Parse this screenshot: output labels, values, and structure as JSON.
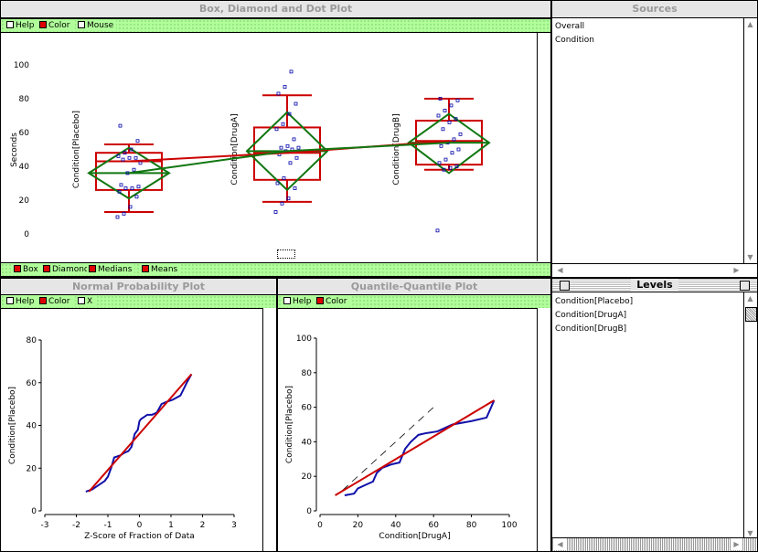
{
  "main": {
    "title": "Box, Diamond and Dot Plot",
    "toolbar": [
      {
        "label": "Help",
        "on": false
      },
      {
        "label": "Color",
        "on": true
      },
      {
        "label": "Mouse",
        "on": false
      }
    ],
    "bottom_toolbar": [
      {
        "label": "Box",
        "on": true
      },
      {
        "label": "Diamond",
        "on": true
      },
      {
        "label": "Medians",
        "on": true
      },
      {
        "label": "Means",
        "on": true
      }
    ]
  },
  "sources": {
    "title": "Sources",
    "items": [
      "Overall",
      "Condition"
    ]
  },
  "levels": {
    "title": "Levels",
    "items": [
      "Condition[Placebo]",
      "Condition[DrugA]",
      "Condition[DrugB]"
    ]
  },
  "normal": {
    "title": "Normal Probability Plot",
    "toolbar": [
      {
        "label": "Help",
        "on": false
      },
      {
        "label": "Color",
        "on": true
      },
      {
        "label": "X",
        "on": false
      }
    ]
  },
  "qq": {
    "title": "Quantile-Quantile Plot",
    "toolbar": [
      {
        "label": "Help",
        "on": false
      },
      {
        "label": "Color",
        "on": true
      }
    ]
  },
  "colors": {
    "box": "#cc0000",
    "diamond": "#117711",
    "dots": "#0000aa",
    "toolbar": "#b0ff9a",
    "qqline": "#1010aa"
  },
  "chart_data": [
    {
      "type": "box",
      "ylabel": "Seconds",
      "ylim": [
        0,
        100
      ],
      "yticks": [
        "0",
        "20",
        "40",
        "60",
        "80",
        "100"
      ],
      "groups": [
        {
          "label": "Condition[Placebo]",
          "q1": 26,
          "median": 43,
          "q3": 48,
          "whisker_low": 13,
          "whisker_high": 53,
          "mean": 36,
          "ci_low": 21,
          "ci_high": 51,
          "points": [
            10,
            12,
            16,
            22,
            25,
            27,
            27,
            28,
            29,
            36,
            38,
            42,
            44,
            45,
            45,
            46,
            48,
            50,
            55,
            64
          ]
        },
        {
          "label": "Condition[DrugA]",
          "q1": 32,
          "median": 48,
          "q3": 63,
          "whisker_low": 19,
          "whisker_high": 82,
          "mean": 49,
          "ci_low": 26,
          "ci_high": 72,
          "points": [
            13,
            18,
            21,
            27,
            30,
            33,
            42,
            45,
            47,
            49,
            50,
            51,
            51,
            52,
            56,
            62,
            65,
            71,
            77,
            83,
            87,
            96
          ]
        },
        {
          "label": "Condition[DrugB]",
          "q1": 41,
          "median": 55,
          "q3": 67,
          "whisker_low": 38,
          "whisker_high": 80,
          "mean": 54,
          "ci_low": 36,
          "ci_high": 71,
          "points": [
            2,
            38,
            39,
            40,
            42,
            44,
            48,
            50,
            52,
            54,
            56,
            59,
            62,
            66,
            68,
            70,
            73,
            76,
            79,
            80
          ]
        }
      ]
    },
    {
      "type": "line",
      "title": "Normal Probability Plot",
      "xlabel": "Z-Score of Fraction of Data",
      "ylabel": "Condition[Placebo]",
      "xlim": [
        -3,
        3
      ],
      "ylim": [
        0,
        80
      ],
      "xticks": [
        "-3",
        "-2",
        "-1",
        "0",
        "1",
        "2",
        "3"
      ],
      "yticks": [
        "0",
        "20",
        "40",
        "60",
        "80"
      ],
      "fit": {
        "x": [
          -1.6,
          1.65
        ],
        "y": [
          9,
          64
        ]
      },
      "series": [
        {
          "x": [
            -1.7,
            -1.5,
            -1.3,
            -1.1,
            -1.0,
            -0.9,
            -0.8,
            -0.6,
            -0.5,
            -0.35,
            -0.25,
            -0.15,
            -0.05,
            0.0,
            0.05,
            0.15,
            0.25,
            0.4,
            0.55,
            0.7,
            0.85,
            1.05,
            1.3,
            1.5,
            1.65
          ],
          "y": [
            9,
            10,
            12,
            14,
            16,
            20,
            25,
            26,
            27,
            28,
            30,
            36,
            38,
            42,
            43,
            44,
            45,
            45,
            46,
            50,
            51,
            52,
            54,
            60,
            64
          ]
        }
      ]
    },
    {
      "type": "line",
      "title": "Quantile-Quantile Plot",
      "xlabel": "Condition[DrugA]",
      "ylabel": "Condition[Placebo]",
      "xlim": [
        0,
        100
      ],
      "ylim": [
        0,
        100
      ],
      "xticks": [
        "0",
        "20",
        "40",
        "60",
        "80",
        "100"
      ],
      "yticks": [
        "0",
        "20",
        "40",
        "60",
        "80",
        "100"
      ],
      "fit": {
        "x": [
          8,
          92
        ],
        "y": [
          9,
          64
        ]
      },
      "diag": {
        "x": [
          12,
          60
        ],
        "y": [
          12,
          60
        ]
      },
      "series": [
        {
          "x": [
            13,
            18,
            20,
            24,
            28,
            30,
            33,
            38,
            42,
            45,
            48,
            52,
            56,
            62,
            70,
            80,
            88,
            92
          ],
          "y": [
            9,
            10,
            13,
            15,
            17,
            22,
            25,
            27,
            28,
            36,
            40,
            44,
            45,
            46,
            50,
            52,
            54,
            64
          ]
        }
      ]
    }
  ]
}
